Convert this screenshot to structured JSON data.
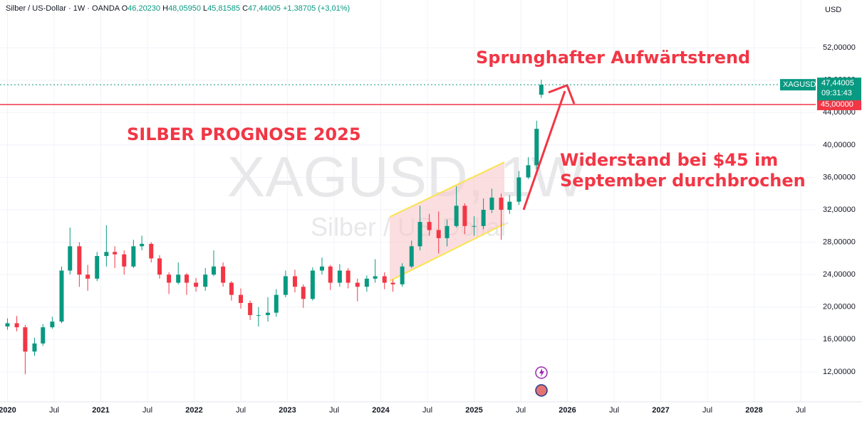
{
  "chart_data": {
    "type": "candlestick",
    "header": {
      "symbol": "Silber / US-Dollar · 1W · OANDA",
      "o": "O",
      "open": "46,20230",
      "h": "H",
      "high": "48,05950",
      "l": "L",
      "low": "45,81585",
      "c": "C",
      "close": "47,44005",
      "change": "+1,38705 (+3,01%)"
    },
    "currency": "USD",
    "watermark": {
      "symbol": "XAGUSD, 1W",
      "name": "Silber / US-Dollar"
    },
    "annotations": [
      {
        "text": "SILBER PROGNOSE 2025"
      },
      {
        "text": "Sprunghafter Aufwärtstrend"
      },
      {
        "lines": [
          "Widerstand bei $45 im",
          "September durchbrochen"
        ]
      }
    ],
    "last_price": {
      "tag": "XAGUSD",
      "countdown": "09:31:43"
    },
    "hlines": [
      {
        "value": 45,
        "label": "45,00000",
        "color": "#f23645"
      }
    ],
    "up_color": "#089981",
    "down_color": "#f23645",
    "xlim": [
      2019.92,
      2028.66
    ],
    "xticks": [
      {
        "value": 2020,
        "label": "2020"
      },
      {
        "value": 2020.5,
        "label": "Jul"
      },
      {
        "value": 2021,
        "label": "2021"
      },
      {
        "value": 2021.5,
        "label": "Jul"
      },
      {
        "value": 2022,
        "label": "2022"
      },
      {
        "value": 2022.5,
        "label": "Jul"
      },
      {
        "value": 2023,
        "label": "2023"
      },
      {
        "value": 2023.5,
        "label": "Jul"
      },
      {
        "value": 2024,
        "label": "2024"
      },
      {
        "value": 2024.5,
        "label": "Jul"
      },
      {
        "value": 2025,
        "label": "2025"
      },
      {
        "value": 2025.5,
        "label": "Jul"
      },
      {
        "value": 2026,
        "label": "2026"
      },
      {
        "value": 2026.5,
        "label": "Jul"
      },
      {
        "value": 2027,
        "label": "2027"
      },
      {
        "value": 2027.5,
        "label": "Jul"
      },
      {
        "value": 2028,
        "label": "2028"
      },
      {
        "value": 2028.5,
        "label": "Jul"
      }
    ],
    "ylim": [
      8.3,
      57.9
    ],
    "yticks": [
      {
        "value": 12,
        "label": "12,00000"
      },
      {
        "value": 16,
        "label": "16,00000"
      },
      {
        "value": 20,
        "label": "20,00000"
      },
      {
        "value": 24,
        "label": "24,00000"
      },
      {
        "value": 28,
        "label": "28,00000"
      },
      {
        "value": 32,
        "label": "32,00000"
      },
      {
        "value": 36,
        "label": "36,00000"
      },
      {
        "value": 40,
        "label": "40,00000"
      },
      {
        "value": 44,
        "label": "44,00000"
      },
      {
        "value": 48,
        "label": "48,00000"
      },
      {
        "value": 52,
        "label": "52,00000"
      }
    ],
    "x": [
      2020.0,
      2020.1,
      2020.19,
      2020.29,
      2020.38,
      2020.48,
      2020.58,
      2020.67,
      2020.77,
      2020.86,
      2020.96,
      2021.06,
      2021.15,
      2021.25,
      2021.35,
      2021.44,
      2021.54,
      2021.63,
      2021.73,
      2021.83,
      2021.92,
      2022.02,
      2022.12,
      2022.21,
      2022.31,
      2022.4,
      2022.5,
      2022.6,
      2022.69,
      2022.79,
      2022.88,
      2022.98,
      2023.08,
      2023.17,
      2023.27,
      2023.37,
      2023.46,
      2023.56,
      2023.65,
      2023.75,
      2023.85,
      2023.94,
      2024.04,
      2024.13,
      2024.23,
      2024.33,
      2024.42,
      2024.52,
      2024.62,
      2024.71,
      2024.81,
      2024.9,
      2025.0,
      2025.1,
      2025.19,
      2025.29,
      2025.38,
      2025.48,
      2025.58,
      2025.67,
      2025.72
    ],
    "open": [
      17.6,
      18.0,
      17.5,
      14.5,
      15.5,
      17.5,
      18.2,
      24.5,
      27.5,
      24.0,
      23.5,
      26.3,
      26.8,
      26.5,
      25.0,
      27.5,
      27.8,
      26.0,
      24.0,
      23.0,
      24.0,
      23.0,
      22.5,
      24.0,
      25.0,
      23.0,
      21.5,
      20.5,
      19.0,
      19.0,
      19.3,
      21.5,
      23.8,
      22.5,
      21.0,
      24.5,
      25.0,
      23.0,
      24.5,
      23.0,
      22.5,
      23.5,
      23.8,
      23.0,
      22.8,
      25.0,
      27.5,
      30.5,
      29.5,
      28.5,
      30.0,
      32.5,
      30.0,
      30.0,
      32.0,
      33.5,
      32.0,
      33.0,
      36.0,
      37.5,
      46.2023
    ],
    "high": [
      18.6,
      18.9,
      17.8,
      16.2,
      17.9,
      18.8,
      25.0,
      29.8,
      28.0,
      25.2,
      26.8,
      30.1,
      27.5,
      27.0,
      28.3,
      28.8,
      28.0,
      26.4,
      24.3,
      25.5,
      24.2,
      23.6,
      24.8,
      27.0,
      25.5,
      23.2,
      22.3,
      20.8,
      20.0,
      21.2,
      22.2,
      24.5,
      24.6,
      22.8,
      24.9,
      26.1,
      25.2,
      25.3,
      24.8,
      23.5,
      23.9,
      25.9,
      24.3,
      23.4,
      25.4,
      28.2,
      32.5,
      31.5,
      31.8,
      30.8,
      34.9,
      32.8,
      31.2,
      33.4,
      34.6,
      34.0,
      33.8,
      36.8,
      38.5,
      43.0,
      48.0595
    ],
    "low": [
      17.2,
      17.0,
      11.7,
      14.0,
      15.2,
      17.3,
      18.0,
      24.0,
      22.5,
      22.0,
      23.2,
      25.0,
      24.8,
      24.0,
      24.8,
      27.0,
      25.5,
      23.5,
      21.6,
      22.8,
      21.5,
      21.9,
      22.0,
      23.8,
      22.5,
      20.8,
      19.8,
      18.4,
      17.6,
      18.2,
      18.8,
      21.2,
      21.8,
      19.9,
      20.8,
      24.0,
      22.1,
      22.5,
      22.3,
      20.7,
      21.9,
      23.0,
      22.2,
      21.9,
      22.5,
      24.8,
      27.0,
      28.8,
      26.6,
      27.5,
      29.8,
      29.0,
      28.8,
      29.6,
      31.6,
      28.3,
      31.5,
      32.6,
      35.8,
      37.0,
      45.81585
    ],
    "close": [
      18.0,
      17.5,
      14.5,
      15.5,
      17.5,
      18.2,
      24.5,
      27.5,
      24.0,
      23.5,
      26.3,
      26.8,
      26.5,
      25.0,
      27.5,
      27.8,
      26.0,
      24.0,
      23.0,
      24.0,
      23.0,
      22.5,
      24.0,
      25.0,
      23.0,
      21.5,
      20.5,
      19.0,
      19.0,
      19.3,
      21.5,
      23.8,
      22.5,
      21.0,
      24.5,
      25.0,
      23.0,
      24.5,
      23.0,
      22.5,
      23.5,
      23.8,
      23.0,
      22.8,
      25.0,
      27.5,
      30.5,
      29.5,
      28.5,
      30.0,
      32.5,
      30.0,
      30.0,
      32.0,
      33.5,
      32.0,
      33.0,
      36.0,
      37.5,
      42.0,
      47.44005
    ]
  }
}
